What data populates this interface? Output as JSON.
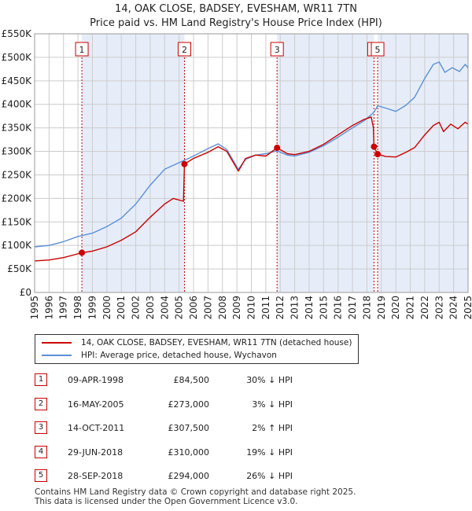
{
  "title": "14, OAK CLOSE, BADSEY, EVESHAM, WR11 7TN",
  "subtitle": "Price paid vs. HM Land Registry's House Price Index (HPI)",
  "legend": {
    "property_label": "14, OAK CLOSE, BADSEY, EVESHAM, WR11 7TN (detached house)",
    "hpi_label": "HPI: Average price, detached house, Wychavon"
  },
  "colors": {
    "property": "#cc0000",
    "hpi": "#5b8fd6",
    "band": "#e6edf9",
    "grid": "#cccccc"
  },
  "transactions": [
    {
      "num": "1",
      "date": "09-APR-1998",
      "price": "£84,500",
      "hpi": "30% ↓ HPI"
    },
    {
      "num": "2",
      "date": "16-MAY-2005",
      "price": "£273,000",
      "hpi": "3% ↓ HPI"
    },
    {
      "num": "3",
      "date": "14-OCT-2011",
      "price": "£307,500",
      "hpi": "2% ↑ HPI"
    },
    {
      "num": "4",
      "date": "29-JUN-2018",
      "price": "£310,000",
      "hpi": "19% ↓ HPI"
    },
    {
      "num": "5",
      "date": "28-SEP-2018",
      "price": "£294,000",
      "hpi": "26% ↓ HPI"
    }
  ],
  "footer": {
    "line1": "Contains HM Land Registry data © Crown copyright and database right 2025.",
    "line2": "This data is licensed under the Open Government Licence v3.0."
  },
  "chart_data": {
    "type": "line",
    "xlim": [
      1995,
      2025
    ],
    "ylim": [
      0,
      550000
    ],
    "y_ticks": [
      {
        "value": 0,
        "label": "£0"
      },
      {
        "value": 50000,
        "label": "£50K"
      },
      {
        "value": 100000,
        "label": "£100K"
      },
      {
        "value": 150000,
        "label": "£150K"
      },
      {
        "value": 200000,
        "label": "£200K"
      },
      {
        "value": 250000,
        "label": "£250K"
      },
      {
        "value": 300000,
        "label": "£300K"
      },
      {
        "value": 350000,
        "label": "£350K"
      },
      {
        "value": 400000,
        "label": "£400K"
      },
      {
        "value": 450000,
        "label": "£450K"
      },
      {
        "value": 500000,
        "label": "£500K"
      },
      {
        "value": 550000,
        "label": "£550K"
      }
    ],
    "x_ticks": [
      "1995",
      "1996",
      "1997",
      "1998",
      "1999",
      "2000",
      "2001",
      "2002",
      "2003",
      "2004",
      "2005",
      "2006",
      "2007",
      "2008",
      "2009",
      "2010",
      "2011",
      "2012",
      "2013",
      "2014",
      "2015",
      "2016",
      "2017",
      "2018",
      "2019",
      "2020",
      "2021",
      "2022",
      "2023",
      "2024",
      "2025"
    ],
    "grid": true,
    "series": [
      {
        "name": "14, OAK CLOSE, BADSEY, EVESHAM, WR11 7TN (detached house)",
        "points": [
          [
            1995.0,
            67000
          ],
          [
            1996.0,
            69000
          ],
          [
            1997.0,
            74000
          ],
          [
            1998.27,
            84500
          ],
          [
            1999.0,
            88000
          ],
          [
            2000.0,
            97000
          ],
          [
            2001.0,
            111000
          ],
          [
            2002.0,
            129000
          ],
          [
            2003.0,
            160000
          ],
          [
            2004.0,
            188000
          ],
          [
            2004.6,
            200000
          ],
          [
            2005.3,
            194000
          ],
          [
            2005.37,
            273000
          ],
          [
            2006.0,
            285000
          ],
          [
            2007.0,
            298000
          ],
          [
            2007.7,
            310000
          ],
          [
            2008.3,
            300000
          ],
          [
            2009.1,
            258000
          ],
          [
            2009.6,
            285000
          ],
          [
            2010.3,
            292000
          ],
          [
            2011.0,
            290000
          ],
          [
            2011.78,
            307500
          ],
          [
            2012.5,
            295000
          ],
          [
            2013.0,
            293000
          ],
          [
            2014.0,
            300000
          ],
          [
            2015.0,
            315000
          ],
          [
            2016.0,
            335000
          ],
          [
            2017.0,
            355000
          ],
          [
            2017.8,
            368000
          ],
          [
            2018.3,
            373000
          ],
          [
            2018.45,
            350000
          ],
          [
            2018.49,
            310000
          ],
          [
            2018.74,
            294000
          ],
          [
            2019.3,
            289000
          ],
          [
            2020.0,
            288000
          ],
          [
            2020.7,
            298000
          ],
          [
            2021.3,
            308000
          ],
          [
            2022.0,
            335000
          ],
          [
            2022.6,
            355000
          ],
          [
            2023.0,
            362000
          ],
          [
            2023.3,
            342000
          ],
          [
            2023.8,
            358000
          ],
          [
            2024.3,
            348000
          ],
          [
            2024.8,
            362000
          ],
          [
            2025.0,
            358000
          ]
        ]
      },
      {
        "name": "HPI: Average price, detached house, Wychavon",
        "points": [
          [
            1995.0,
            97000
          ],
          [
            1996.0,
            100000
          ],
          [
            1997.0,
            108000
          ],
          [
            1998.0,
            119000
          ],
          [
            1999.0,
            126000
          ],
          [
            2000.0,
            140000
          ],
          [
            2001.0,
            158000
          ],
          [
            2002.0,
            188000
          ],
          [
            2003.0,
            228000
          ],
          [
            2004.0,
            262000
          ],
          [
            2005.0,
            276000
          ],
          [
            2005.37,
            281000
          ],
          [
            2006.0,
            290000
          ],
          [
            2007.0,
            306000
          ],
          [
            2007.7,
            316000
          ],
          [
            2008.3,
            304000
          ],
          [
            2009.1,
            262000
          ],
          [
            2009.6,
            283000
          ],
          [
            2010.3,
            292000
          ],
          [
            2011.0,
            295000
          ],
          [
            2011.78,
            301000
          ],
          [
            2012.5,
            292000
          ],
          [
            2013.0,
            290000
          ],
          [
            2014.0,
            298000
          ],
          [
            2015.0,
            312000
          ],
          [
            2016.0,
            330000
          ],
          [
            2017.0,
            350000
          ],
          [
            2017.8,
            365000
          ],
          [
            2018.49,
            383000
          ],
          [
            2018.74,
            397000
          ],
          [
            2019.3,
            392000
          ],
          [
            2020.0,
            385000
          ],
          [
            2020.7,
            398000
          ],
          [
            2021.3,
            415000
          ],
          [
            2022.0,
            455000
          ],
          [
            2022.6,
            485000
          ],
          [
            2023.0,
            490000
          ],
          [
            2023.4,
            468000
          ],
          [
            2023.9,
            478000
          ],
          [
            2024.4,
            470000
          ],
          [
            2024.8,
            485000
          ],
          [
            2025.0,
            478000
          ]
        ]
      }
    ],
    "sales": [
      {
        "label": "1",
        "x": 1998.27,
        "y": 84500
      },
      {
        "label": "2",
        "x": 2005.37,
        "y": 273000
      },
      {
        "label": "3",
        "x": 2011.78,
        "y": 307500
      },
      {
        "label": "4",
        "x": 2018.49,
        "y": 310000
      },
      {
        "label": "5",
        "x": 2018.74,
        "y": 294000
      }
    ]
  }
}
